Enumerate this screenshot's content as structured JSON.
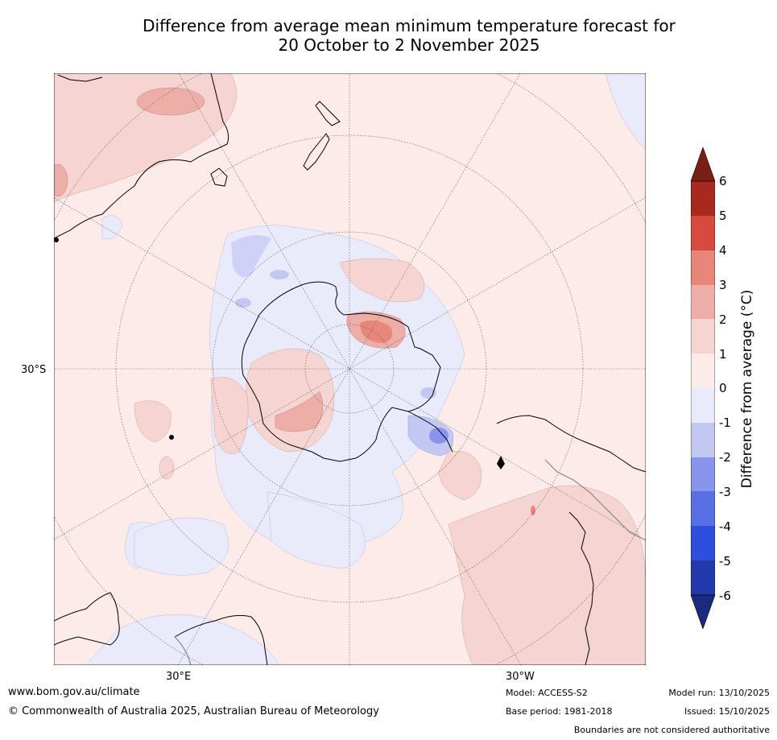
{
  "title_line1": "Difference from average mean minimum temperature forecast for",
  "title_line2": "20 October to 2 November 2025",
  "map": {
    "projection": "south-polar-stereographic",
    "lat_label": "30°S",
    "lon_labels": [
      "30°E",
      "30°W"
    ]
  },
  "legend": {
    "title": "Difference from average (°C)",
    "ticks": [
      "6",
      "5",
      "4",
      "3",
      "2",
      "1",
      "0",
      "-1",
      "-2",
      "-3",
      "-4",
      "-5",
      "-6"
    ],
    "colors": {
      "above_6": "#7a1f14",
      "5_6": "#a8291f",
      "4_5": "#d94a3e",
      "3_4": "#e8867c",
      "2_3": "#edaea8",
      "1_2": "#f5d4d1",
      "0_1": "#fcebe8",
      "m1_0": "#e9ebfb",
      "m2_m1": "#c3c8f3",
      "m3_m2": "#8995ec",
      "m4_m3": "#5a6fe3",
      "m5_m4": "#2e4fdd",
      "m6_m5": "#2339ac",
      "below_m6": "#1b2a7e"
    }
  },
  "footer": {
    "website": "www.bom.gov.au/climate",
    "copyright": "© Commonwealth of Australia 2025, Australian Bureau of Meteorology",
    "model": "Model: ACCESS-S2",
    "base_period": "Base period: 1981-2018",
    "model_run": "Model run: 13/10/2025",
    "issued": "Issued: 15/10/2025",
    "disclaimer": "Boundaries are not considered authoritative"
  }
}
